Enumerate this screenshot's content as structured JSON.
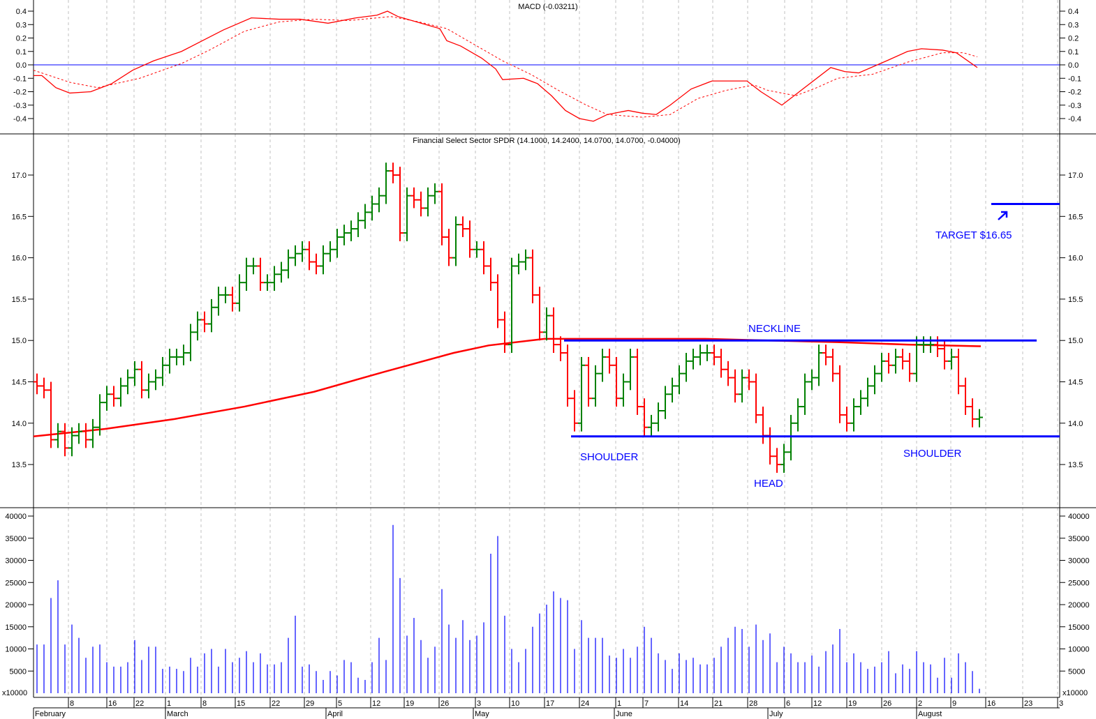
{
  "chart_data": {
    "type": "bar",
    "subtype": "ohlc",
    "symbol_title": "Financial Select Sector SPDR (14.1000, 14.2400, 14.0700, 14.0700, -0.04000)",
    "last_bar": {
      "open": 14.1,
      "high": 14.24,
      "low": 14.07,
      "close": 14.07,
      "change": -0.04
    },
    "macd_title": "MACD (-0.03211)",
    "volume_unit_label": "x10000",
    "price_ticks": [
      "17.0",
      "16.5",
      "16.0",
      "15.5",
      "15.0",
      "14.5",
      "14.0",
      "13.5"
    ],
    "macd_ticks": [
      "0.4",
      "0.3",
      "0.2",
      "0.1",
      "0.0",
      "-0.1",
      "-0.2",
      "-0.3",
      "-0.4"
    ],
    "volume_ticks": [
      "40000",
      "35000",
      "30000",
      "25000",
      "20000",
      "15000",
      "10000",
      "5000",
      "0"
    ],
    "price_ylim": [
      13.0,
      17.4
    ],
    "macd_ylim": [
      -0.5,
      0.5
    ],
    "volume_ylim": [
      0,
      40000
    ],
    "day_ticks": [
      {
        "label": "8",
        "day": 4.5
      },
      {
        "label": "16",
        "day": 10
      },
      {
        "label": "22",
        "day": 13.9
      },
      {
        "label": "1",
        "day": 18.4
      },
      {
        "label": "8",
        "day": 23.5
      },
      {
        "label": "15",
        "day": 28.4
      },
      {
        "label": "22",
        "day": 33.4
      },
      {
        "label": "29",
        "day": 38.3
      },
      {
        "label": "5",
        "day": 42.9
      },
      {
        "label": "12",
        "day": 47.8
      },
      {
        "label": "19",
        "day": 52.6
      },
      {
        "label": "26",
        "day": 57.6
      },
      {
        "label": "3",
        "day": 62.8
      },
      {
        "label": "10",
        "day": 67.7
      },
      {
        "label": "17",
        "day": 72.7
      },
      {
        "label": "24",
        "day": 77.7
      },
      {
        "label": "1",
        "day": 82.9
      },
      {
        "label": "7",
        "day": 86.8
      },
      {
        "label": "14",
        "day": 91.9
      },
      {
        "label": "21",
        "day": 96.8
      },
      {
        "label": "28",
        "day": 101.8
      },
      {
        "label": "6",
        "day": 107.1
      },
      {
        "label": "12",
        "day": 111
      },
      {
        "label": "19",
        "day": 116
      },
      {
        "label": "26",
        "day": 121
      },
      {
        "label": "2",
        "day": 126
      },
      {
        "label": "9",
        "day": 130.9
      },
      {
        "label": "16",
        "day": 135.9
      },
      {
        "label": "23",
        "day": 141.2
      },
      {
        "label": "3",
        "day": 146.2
      }
    ],
    "months": [
      {
        "label": "February",
        "day": -0.5
      },
      {
        "label": "March",
        "day": 18.4
      },
      {
        "label": "April",
        "day": 41.4
      },
      {
        "label": "May",
        "day": 62.5
      },
      {
        "label": "June",
        "day": 82.7
      },
      {
        "label": "July",
        "day": 104.7
      },
      {
        "label": "August",
        "day": 126
      }
    ],
    "close": [
      14.45,
      14.4,
      13.8,
      13.9,
      13.7,
      13.85,
      13.9,
      13.8,
      13.95,
      14.25,
      14.35,
      14.3,
      14.45,
      14.55,
      14.65,
      14.4,
      14.5,
      14.55,
      14.7,
      14.8,
      14.8,
      14.85,
      15.1,
      15.25,
      15.2,
      15.4,
      15.55,
      15.55,
      15.45,
      15.7,
      15.9,
      15.9,
      15.7,
      15.7,
      15.8,
      15.85,
      16.0,
      16.05,
      16.1,
      15.95,
      15.9,
      16.05,
      16.1,
      16.25,
      16.3,
      16.35,
      16.45,
      16.55,
      16.65,
      16.75,
      17.05,
      17.0,
      16.3,
      16.75,
      16.7,
      16.6,
      16.75,
      16.8,
      16.25,
      16.0,
      16.4,
      16.35,
      16.1,
      16.1,
      15.9,
      15.7,
      15.25,
      14.95,
      15.9,
      15.95,
      16.0,
      15.55,
      15.1,
      15.3,
      14.95,
      14.85,
      14.3,
      14.0,
      14.7,
      14.3,
      14.6,
      14.8,
      14.7,
      14.3,
      14.5,
      14.8,
      14.2,
      13.95,
      14.0,
      14.15,
      14.35,
      14.45,
      14.6,
      14.75,
      14.8,
      14.85,
      14.85,
      14.8,
      14.65,
      14.55,
      14.35,
      14.55,
      14.5,
      14.1,
      13.85,
      13.6,
      13.5,
      13.65,
      14.0,
      14.2,
      14.5,
      14.55,
      14.85,
      14.8,
      14.6,
      14.1,
      14.0,
      14.2,
      14.3,
      14.45,
      14.6,
      14.75,
      14.7,
      14.8,
      14.75,
      14.6,
      14.95,
      14.95,
      14.95,
      14.9,
      14.75,
      14.8,
      14.45,
      14.2,
      14.05,
      14.07
    ],
    "volume": [
      11000,
      11000,
      21500,
      25500,
      11000,
      15500,
      12500,
      8000,
      10500,
      11000,
      7000,
      6000,
      6000,
      7000,
      12000,
      7500,
      10500,
      10500,
      5500,
      6000,
      5500,
      5000,
      8000,
      6000,
      9000,
      10000,
      6000,
      10000,
      7000,
      8000,
      9500,
      7000,
      9000,
      6500,
      6500,
      7000,
      12500,
      17500,
      6000,
      6500,
      5000,
      3000,
      5000,
      4000,
      7500,
      7000,
      3500,
      3000,
      7000,
      12500,
      7500,
      38000,
      26000,
      13000,
      17000,
      12000,
      8000,
      10500,
      23500,
      15500,
      12500,
      16500,
      12000,
      13000,
      16000,
      31500,
      35500,
      17500,
      10000,
      7000,
      10000,
      15000,
      18000,
      20000,
      23000,
      21500,
      21000,
      10000,
      16500,
      12500,
      12500,
      12500,
      8500,
      8000,
      10000,
      8000,
      10500,
      15000,
      12500,
      9000,
      7500,
      5500,
      9000,
      7500,
      8000,
      6500,
      6500,
      8000,
      10500,
      12500,
      15000,
      14500,
      10500,
      15500,
      12000,
      13500,
      7000,
      10500,
      9000,
      7000,
      7000,
      8500,
      6000,
      9500,
      11000,
      14500,
      7000,
      9000,
      7000,
      5500,
      6000,
      7000,
      9500,
      4500,
      6500,
      5500,
      9500,
      7000,
      6500,
      3500,
      8000,
      3500,
      9000,
      7000,
      5000,
      1000
    ],
    "moving_average": [
      [
        -0.5,
        13.84
      ],
      [
        9.7,
        13.93
      ],
      [
        19.7,
        14.05
      ],
      [
        29.7,
        14.2
      ],
      [
        39.7,
        14.38
      ],
      [
        49.7,
        14.62
      ],
      [
        59.7,
        14.85
      ],
      [
        64.7,
        14.94
      ],
      [
        72.7,
        15.02
      ],
      [
        95.7,
        15.02
      ],
      [
        104.7,
        15.0
      ],
      [
        114.7,
        14.98
      ],
      [
        124.7,
        14.95
      ],
      [
        135.2,
        14.93
      ]
    ],
    "macd": [
      [
        -0.5,
        -0.08
      ],
      [
        0.7,
        -0.08
      ],
      [
        2.7,
        -0.17
      ],
      [
        4.7,
        -0.21
      ],
      [
        7.7,
        -0.2
      ],
      [
        10.7,
        -0.14
      ],
      [
        13.7,
        -0.04
      ],
      [
        16.7,
        0.03
      ],
      [
        20.7,
        0.1
      ],
      [
        23.7,
        0.18
      ],
      [
        26.7,
        0.26
      ],
      [
        30.7,
        0.35
      ],
      [
        34.7,
        0.34
      ],
      [
        37.7,
        0.34
      ],
      [
        41.7,
        0.31
      ],
      [
        45.7,
        0.35
      ],
      [
        48.7,
        0.37
      ],
      [
        50.2,
        0.4
      ],
      [
        51.7,
        0.36
      ],
      [
        55.7,
        0.3
      ],
      [
        57.7,
        0.27
      ],
      [
        58.7,
        0.18
      ],
      [
        60.7,
        0.14
      ],
      [
        63.7,
        0.05
      ],
      [
        65.7,
        -0.03
      ],
      [
        66.7,
        -0.11
      ],
      [
        69.7,
        -0.1
      ],
      [
        71.7,
        -0.14
      ],
      [
        73.7,
        -0.23
      ],
      [
        75.7,
        -0.34
      ],
      [
        77.7,
        -0.4
      ],
      [
        79.7,
        -0.42
      ],
      [
        81.7,
        -0.37
      ],
      [
        84.7,
        -0.34
      ],
      [
        86.7,
        -0.36
      ],
      [
        88.7,
        -0.37
      ],
      [
        90.7,
        -0.3
      ],
      [
        93.7,
        -0.18
      ],
      [
        96.7,
        -0.12
      ],
      [
        98.7,
        -0.12
      ],
      [
        101.7,
        -0.12
      ],
      [
        103.7,
        -0.2
      ],
      [
        106.7,
        -0.3
      ],
      [
        109.7,
        -0.18
      ],
      [
        113.7,
        -0.02
      ],
      [
        115.7,
        -0.05
      ],
      [
        117.7,
        -0.06
      ],
      [
        121.7,
        0.03
      ],
      [
        124.7,
        0.1
      ],
      [
        126.7,
        0.12
      ],
      [
        129.7,
        0.11
      ],
      [
        131.7,
        0.09
      ],
      [
        134.7,
        -0.02
      ]
    ],
    "macd_signal": [
      [
        -0.5,
        -0.04
      ],
      [
        4.7,
        -0.13
      ],
      [
        8.7,
        -0.17
      ],
      [
        14.7,
        -0.1
      ],
      [
        20.7,
        0.01
      ],
      [
        24.7,
        0.11
      ],
      [
        29.7,
        0.25
      ],
      [
        34.7,
        0.32
      ],
      [
        39.7,
        0.34
      ],
      [
        44.7,
        0.33
      ],
      [
        50.7,
        0.36
      ],
      [
        54.7,
        0.32
      ],
      [
        58.7,
        0.27
      ],
      [
        62.7,
        0.15
      ],
      [
        66.7,
        0.03
      ],
      [
        70.7,
        -0.07
      ],
      [
        74.7,
        -0.19
      ],
      [
        78.7,
        -0.3
      ],
      [
        81.7,
        -0.37
      ],
      [
        86.7,
        -0.39
      ],
      [
        90.7,
        -0.37
      ],
      [
        94.7,
        -0.25
      ],
      [
        98.7,
        -0.19
      ],
      [
        102.7,
        -0.15
      ],
      [
        104.7,
        -0.19
      ],
      [
        108.7,
        -0.23
      ],
      [
        111.7,
        -0.17
      ],
      [
        114.7,
        -0.1
      ],
      [
        119.7,
        -0.07
      ],
      [
        124.7,
        0.02
      ],
      [
        129.7,
        0.09
      ],
      [
        132.7,
        0.09
      ],
      [
        134.7,
        0.06
      ]
    ],
    "annotations": {
      "neckline": {
        "label": "NECKLINE",
        "price": 15.0,
        "from_day": 75.5,
        "to_day": 143.2
      },
      "support": {
        "price": 13.84,
        "from_day": 76.5,
        "to_day": 146.5
      },
      "target": {
        "label": "TARGET $16.65",
        "price": 16.65,
        "from_day": 136.7,
        "to_day": 146.5
      },
      "left_shoulder": "SHOULDER",
      "head": "HEAD",
      "right_shoulder": "SHOULDER"
    },
    "colors": {
      "up": "#008000",
      "down": "#ff0000",
      "volume": "#0000ff",
      "macd": "#ff0000",
      "annotation": "#0000ff",
      "grid": "#c0c0c0"
    }
  }
}
